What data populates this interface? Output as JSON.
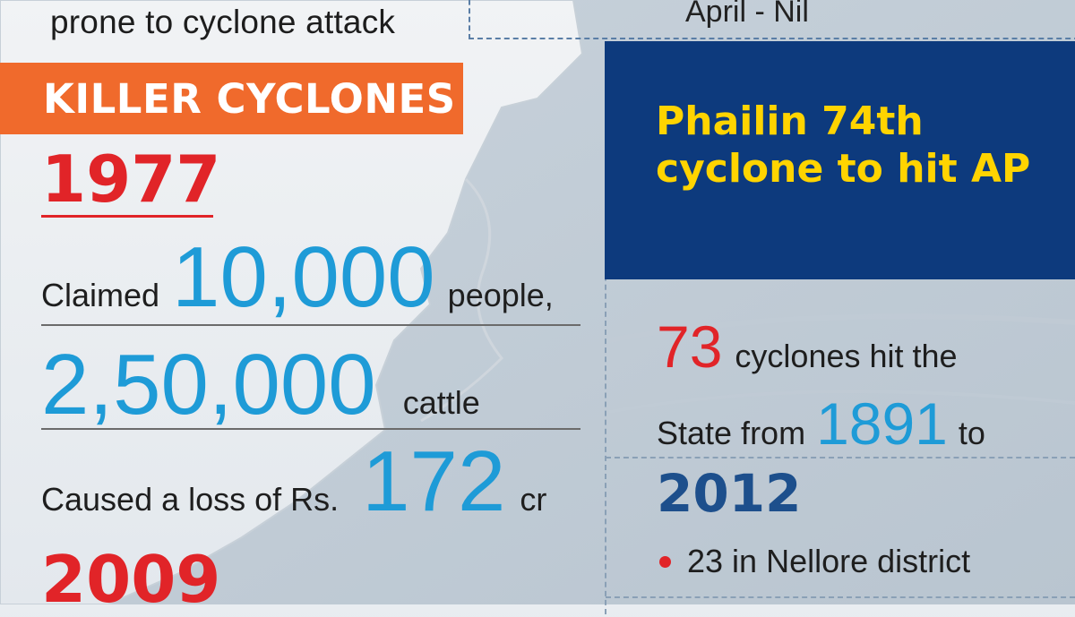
{
  "header": {
    "top_left_fragment": "prone to cyclone attack",
    "top_right_fragment": "April - Nil"
  },
  "killer_cyclones": {
    "banner": "KILLER CYCLONES",
    "year_1977": "1977",
    "claimed_label": "Claimed",
    "people_count": "10,000",
    "people_label": "people,",
    "cattle_count": "2,50,000",
    "cattle_label": "cattle",
    "loss_label": "Caused a loss of Rs.",
    "loss_amount": "172",
    "loss_unit": "cr",
    "year_2009": "2009"
  },
  "phailin": {
    "title": "Phailin 74th cyclone to hit AP",
    "cyclone_count": "73",
    "cyclones_text": "cyclones hit the",
    "state_from": "State from",
    "start_year": "1891",
    "to_label": "to",
    "end_year": "2012",
    "nellore_note": "23 in Nellore district"
  },
  "colors": {
    "orange_banner": "#f06a2c",
    "red_accent": "#e12428",
    "blue_number": "#1e9bd7",
    "navy_box": "#0d3a7d",
    "yellow_title": "#ffd400"
  }
}
